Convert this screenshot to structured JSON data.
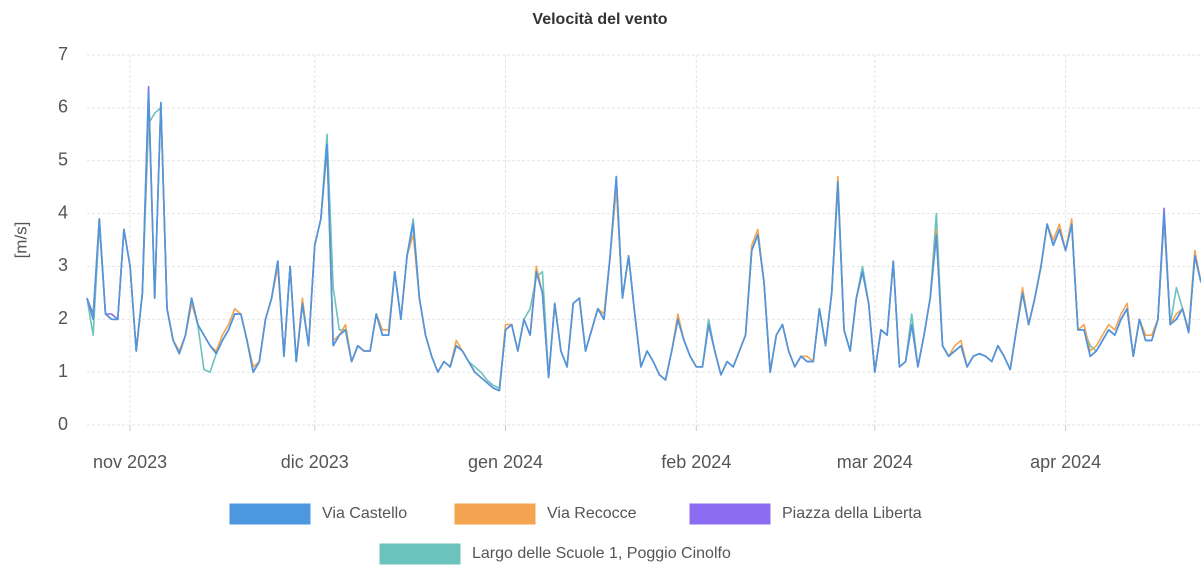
{
  "chart_data": {
    "type": "line",
    "title": "Velocità del vento",
    "ylabel": "[m/s]",
    "xlim": [
      0,
      181
    ],
    "xticks": [
      {
        "value": 7,
        "label": "nov 2023"
      },
      {
        "value": 37,
        "label": "dic 2023"
      },
      {
        "value": 68,
        "label": "gen 2024"
      },
      {
        "value": 99,
        "label": "feb 2024"
      },
      {
        "value": 128,
        "label": "mar 2024"
      },
      {
        "value": 159,
        "label": "apr 2024"
      }
    ],
    "ylim": [
      0,
      7
    ],
    "yticks": [
      0,
      1,
      2,
      3,
      4,
      5,
      6,
      7
    ],
    "grid": true,
    "series": [
      {
        "name": "Largo delle Scuole 1, Poggio Cinolfo",
        "color": "#6cc3bd",
        "values": [
          2.4,
          1.7,
          3.8,
          2.1,
          2.0,
          2.0,
          3.7,
          3.0,
          1.4,
          2.5,
          5.7,
          5.9,
          6.0,
          2.2,
          1.6,
          1.35,
          1.7,
          2.4,
          1.9,
          1.05,
          1.0,
          1.35,
          1.6,
          1.8,
          2.1,
          2.1,
          1.6,
          1.0,
          1.2,
          2.0,
          2.4,
          3.1,
          1.3,
          3.0,
          1.2,
          2.3,
          1.5,
          3.4,
          3.9,
          5.5,
          2.6,
          1.8,
          1.8,
          1.2,
          1.5,
          1.4,
          1.4,
          2.1,
          1.7,
          1.7,
          2.9,
          2.0,
          3.2,
          3.9,
          2.4,
          1.7,
          1.3,
          1.0,
          1.2,
          1.1,
          1.5,
          1.4,
          1.2,
          1.1,
          1.0,
          0.85,
          0.75,
          0.7,
          1.8,
          1.9,
          1.4,
          2.0,
          2.2,
          2.8,
          2.9,
          0.9,
          2.3,
          1.4,
          1.1,
          2.3,
          2.4,
          1.4,
          1.8,
          2.2,
          2.0,
          3.2,
          4.5,
          2.4,
          3.2,
          2.1,
          1.1,
          1.4,
          1.2,
          0.95,
          0.85,
          1.4,
          2.0,
          1.6,
          1.3,
          1.1,
          1.1,
          2.0,
          1.4,
          0.95,
          1.2,
          1.1,
          1.4,
          1.7,
          3.3,
          3.6,
          2.7,
          1.0,
          1.7,
          1.9,
          1.4,
          1.1,
          1.3,
          1.2,
          1.2,
          2.2,
          1.5,
          2.5,
          4.5,
          1.8,
          1.4,
          2.4,
          3.0,
          2.3,
          1.0,
          1.8,
          1.7,
          3.1,
          1.1,
          1.2,
          2.1,
          1.1,
          1.7,
          2.4,
          4.0,
          1.5,
          1.3,
          1.4,
          1.5,
          1.1,
          1.3,
          1.35,
          1.3,
          1.2,
          1.5,
          1.3,
          1.05,
          1.8,
          2.5,
          1.9,
          2.4,
          3.0,
          3.8,
          3.4,
          3.7,
          3.3,
          3.8,
          1.8,
          1.8,
          1.5,
          1.4,
          1.6,
          1.8,
          1.7,
          2.0,
          2.2,
          1.3,
          2.0,
          1.6,
          1.6,
          2.0,
          3.9,
          1.9,
          2.6,
          2.2,
          1.75,
          3.2,
          2.7
        ]
      },
      {
        "name": "Piazza della Liberta",
        "color": "#8c6cf0",
        "values": [
          2.4,
          2.1,
          3.9,
          2.1,
          2.1,
          2.0,
          3.7,
          3.0,
          1.4,
          2.5,
          6.4,
          2.4,
          6.1,
          2.2,
          1.6,
          1.35,
          1.7,
          2.4,
          1.9,
          1.7,
          1.5,
          1.35,
          1.6,
          1.8,
          2.1,
          2.1,
          1.6,
          1.0,
          1.2,
          2.0,
          2.4,
          3.1,
          1.3,
          3.0,
          1.2,
          2.3,
          1.5,
          3.4,
          3.9,
          5.3,
          1.5,
          1.7,
          1.8,
          1.2,
          1.5,
          1.4,
          1.4,
          2.1,
          1.7,
          1.7,
          2.9,
          2.0,
          3.2,
          3.8,
          2.4,
          1.7,
          1.3,
          1.0,
          1.2,
          1.1,
          1.5,
          1.4,
          1.2,
          1.0,
          0.9,
          0.8,
          0.7,
          0.65,
          1.8,
          1.9,
          1.4,
          2.0,
          1.7,
          2.9,
          2.5,
          0.9,
          2.3,
          1.4,
          1.1,
          2.3,
          2.4,
          1.4,
          1.8,
          2.2,
          2.0,
          3.2,
          4.7,
          2.4,
          3.2,
          2.1,
          1.1,
          1.4,
          1.2,
          0.95,
          0.85,
          1.4,
          2.0,
          1.6,
          1.3,
          1.1,
          1.1,
          1.9,
          1.4,
          0.95,
          1.2,
          1.1,
          1.4,
          1.7,
          3.3,
          3.6,
          2.7,
          1.0,
          1.7,
          1.9,
          1.4,
          1.1,
          1.3,
          1.2,
          1.2,
          2.2,
          1.5,
          2.5,
          4.6,
          1.8,
          1.4,
          2.4,
          2.9,
          2.3,
          1.0,
          1.8,
          1.7,
          3.1,
          1.1,
          1.2,
          1.9,
          1.1,
          1.7,
          2.4,
          3.6,
          1.5,
          1.3,
          1.4,
          1.5,
          1.1,
          1.3,
          1.35,
          1.3,
          1.2,
          1.5,
          1.3,
          1.05,
          1.8,
          2.5,
          1.9,
          2.4,
          3.0,
          3.8,
          3.4,
          3.7,
          3.3,
          3.8,
          1.8,
          1.8,
          1.3,
          1.4,
          1.6,
          1.8,
          1.7,
          2.0,
          2.2,
          1.3,
          2.0,
          1.6,
          1.6,
          2.0,
          4.1,
          1.9,
          2.0,
          2.2,
          1.75,
          3.2,
          2.7
        ]
      },
      {
        "name": "Via Recocce",
        "color": "#f4a451",
        "values": [
          2.4,
          2.0,
          3.9,
          2.1,
          2.0,
          2.0,
          3.7,
          3.0,
          1.4,
          2.5,
          6.2,
          2.4,
          6.1,
          2.2,
          1.6,
          1.4,
          1.7,
          2.3,
          1.9,
          1.7,
          1.5,
          1.4,
          1.7,
          1.9,
          2.2,
          2.1,
          1.6,
          1.1,
          1.2,
          2.0,
          2.4,
          3.0,
          1.3,
          3.0,
          1.2,
          2.4,
          1.5,
          3.4,
          3.9,
          5.2,
          1.6,
          1.7,
          1.9,
          1.2,
          1.5,
          1.4,
          1.4,
          2.1,
          1.8,
          1.8,
          2.9,
          2.0,
          3.2,
          3.6,
          2.4,
          1.7,
          1.3,
          1.0,
          1.2,
          1.1,
          1.6,
          1.4,
          1.2,
          1.0,
          0.9,
          0.8,
          0.7,
          0.65,
          1.9,
          1.9,
          1.4,
          2.0,
          1.7,
          3.0,
          2.5,
          0.9,
          2.3,
          1.4,
          1.1,
          2.3,
          2.4,
          1.4,
          1.8,
          2.2,
          2.1,
          3.2,
          4.5,
          2.4,
          3.2,
          2.1,
          1.1,
          1.4,
          1.2,
          0.95,
          0.85,
          1.4,
          2.1,
          1.6,
          1.3,
          1.1,
          1.1,
          1.9,
          1.4,
          0.95,
          1.2,
          1.1,
          1.4,
          1.7,
          3.4,
          3.7,
          2.7,
          1.0,
          1.7,
          1.9,
          1.4,
          1.1,
          1.3,
          1.3,
          1.2,
          2.2,
          1.5,
          2.5,
          4.7,
          1.8,
          1.4,
          2.4,
          2.9,
          2.3,
          1.0,
          1.8,
          1.7,
          3.1,
          1.1,
          1.2,
          1.9,
          1.1,
          1.7,
          2.4,
          3.7,
          1.5,
          1.3,
          1.5,
          1.6,
          1.1,
          1.3,
          1.35,
          1.3,
          1.2,
          1.5,
          1.3,
          1.05,
          1.8,
          2.6,
          1.9,
          2.4,
          3.0,
          3.8,
          3.5,
          3.8,
          3.3,
          3.9,
          1.8,
          1.9,
          1.4,
          1.5,
          1.7,
          1.9,
          1.8,
          2.1,
          2.3,
          1.3,
          2.0,
          1.7,
          1.7,
          2.0,
          3.9,
          1.9,
          2.1,
          2.2,
          1.8,
          3.3,
          2.7
        ]
      },
      {
        "name": "Via Castello",
        "color": "#4d96e0",
        "values": [
          2.4,
          2.0,
          3.9,
          2.1,
          2.0,
          2.0,
          3.7,
          3.0,
          1.4,
          2.5,
          6.3,
          2.4,
          6.1,
          2.2,
          1.6,
          1.35,
          1.7,
          2.4,
          1.9,
          1.7,
          1.5,
          1.35,
          1.6,
          1.8,
          2.1,
          2.1,
          1.6,
          1.0,
          1.2,
          2.0,
          2.4,
          3.1,
          1.3,
          3.0,
          1.2,
          2.3,
          1.5,
          3.4,
          3.9,
          5.3,
          1.5,
          1.7,
          1.8,
          1.2,
          1.5,
          1.4,
          1.4,
          2.1,
          1.7,
          1.7,
          2.9,
          2.0,
          3.2,
          3.8,
          2.4,
          1.7,
          1.3,
          1.0,
          1.2,
          1.1,
          1.5,
          1.4,
          1.2,
          1.0,
          0.9,
          0.8,
          0.7,
          0.65,
          1.8,
          1.9,
          1.4,
          2.0,
          1.7,
          2.9,
          2.5,
          0.9,
          2.3,
          1.4,
          1.1,
          2.3,
          2.4,
          1.4,
          1.8,
          2.2,
          2.0,
          3.2,
          4.7,
          2.4,
          3.2,
          2.1,
          1.1,
          1.4,
          1.2,
          0.95,
          0.85,
          1.4,
          2.0,
          1.6,
          1.3,
          1.1,
          1.1,
          1.9,
          1.4,
          0.95,
          1.2,
          1.1,
          1.4,
          1.7,
          3.3,
          3.6,
          2.7,
          1.0,
          1.7,
          1.9,
          1.4,
          1.1,
          1.3,
          1.2,
          1.2,
          2.2,
          1.5,
          2.5,
          4.6,
          1.8,
          1.4,
          2.4,
          2.9,
          2.3,
          1.0,
          1.8,
          1.7,
          3.1,
          1.1,
          1.2,
          1.9,
          1.1,
          1.7,
          2.4,
          3.6,
          1.5,
          1.3,
          1.4,
          1.5,
          1.1,
          1.3,
          1.35,
          1.3,
          1.2,
          1.5,
          1.3,
          1.05,
          1.8,
          2.5,
          1.9,
          2.4,
          3.0,
          3.8,
          3.4,
          3.7,
          3.3,
          3.8,
          1.8,
          1.8,
          1.3,
          1.4,
          1.6,
          1.8,
          1.7,
          2.0,
          2.2,
          1.3,
          2.0,
          1.6,
          1.6,
          2.0,
          4.0,
          1.9,
          2.0,
          2.2,
          1.75,
          3.2,
          2.7
        ]
      }
    ]
  }
}
